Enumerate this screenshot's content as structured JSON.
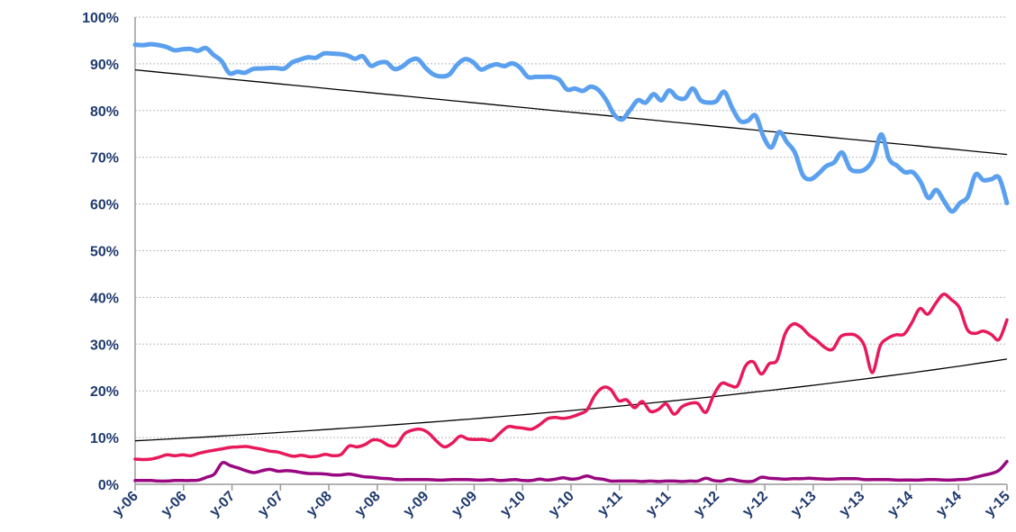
{
  "chart_data": {
    "type": "line",
    "title": "",
    "xlabel": "",
    "ylabel": "",
    "ylim": [
      0,
      100
    ],
    "y_ticks": [
      "0%",
      "10%",
      "20%",
      "30%",
      "40%",
      "50%",
      "60%",
      "70%",
      "80%",
      "90%",
      "100%"
    ],
    "x_tick_labels": [
      "y-06",
      "y-06",
      "y-07",
      "y-07",
      "y-08",
      "y-08",
      "y-09",
      "y-09",
      "y-10",
      "y-10",
      "y-11",
      "y-11",
      "y-12",
      "y-12",
      "y-13",
      "y-13",
      "y-14",
      "y-14",
      "y-15"
    ],
    "grid": true,
    "series": [
      {
        "color": "#5aa0ef",
        "values": [
          94.1,
          94.0,
          94.2,
          94.0,
          93.6,
          92.9,
          93.1,
          93.2,
          92.8,
          93.4,
          91.9,
          90.6,
          88.0,
          88.3,
          88.1,
          88.9,
          89.0,
          89.1,
          89.1,
          89.0,
          90.3,
          90.9,
          91.4,
          91.3,
          92.2,
          92.2,
          92.1,
          91.8,
          91.1,
          91.6,
          89.6,
          90.2,
          90.3,
          88.9,
          89.4,
          90.7,
          91.0,
          89.1,
          87.7,
          87.3,
          87.7,
          89.8,
          91.0,
          90.4,
          88.8,
          89.4,
          89.9,
          89.5,
          90.1,
          89.2,
          87.2,
          87.2,
          87.2,
          87.2,
          86.6,
          84.5,
          84.7,
          84.2,
          85.1,
          84.4,
          82.2,
          79.1,
          78.1,
          80.1,
          82.2,
          81.7,
          83.5,
          82.2,
          84.3,
          82.8,
          82.6,
          84.7,
          82.2,
          81.7,
          82.0,
          84.0,
          80.6,
          77.8,
          77.8,
          78.9,
          74.4,
          72.1,
          75.4,
          73.2,
          71.0,
          66.2,
          65.3,
          66.5,
          68.1,
          68.9,
          71.0,
          67.6,
          67.0,
          67.5,
          69.7,
          74.9,
          69.6,
          68.2,
          66.8,
          66.8,
          64.7,
          61.3,
          63.0,
          60.6,
          58.4,
          60.2,
          61.5,
          66.3,
          65.1,
          65.3,
          65.6,
          60.2
        ]
      },
      {
        "color": "#e8195a",
        "values": [
          5.4,
          5.3,
          5.4,
          5.8,
          6.3,
          6.1,
          6.3,
          6.1,
          6.6,
          7.0,
          7.3,
          7.6,
          7.9,
          8.0,
          8.1,
          7.8,
          7.5,
          7.1,
          6.9,
          6.4,
          6.0,
          6.2,
          5.9,
          6.0,
          6.4,
          6.1,
          6.4,
          8.2,
          8.0,
          8.5,
          9.5,
          9.3,
          8.3,
          8.4,
          10.8,
          11.6,
          11.8,
          11.0,
          9.3,
          8.0,
          8.8,
          10.3,
          9.7,
          9.6,
          9.6,
          9.4,
          10.9,
          12.3,
          12.2,
          12.0,
          11.8,
          12.7,
          14.0,
          14.3,
          14.1,
          14.4,
          15.0,
          15.9,
          19.0,
          20.7,
          20.3,
          17.9,
          18.1,
          16.4,
          17.7,
          15.6,
          16.0,
          17.2,
          15.0,
          16.6,
          17.3,
          17.3,
          15.4,
          19.1,
          21.6,
          21.2,
          21.1,
          25.3,
          26.2,
          23.6,
          25.8,
          26.6,
          32.2,
          34.3,
          33.7,
          32.0,
          30.8,
          29.3,
          28.9,
          31.6,
          32.1,
          31.8,
          29.7,
          23.9,
          29.6,
          31.3,
          32.0,
          32.1,
          34.6,
          37.6,
          36.4,
          38.7,
          40.7,
          39.5,
          37.8,
          33.1,
          32.3,
          32.8,
          32.1,
          31.0,
          35.2
        ]
      },
      {
        "color": "#990880",
        "values": [
          0.8,
          0.8,
          0.8,
          0.7,
          0.7,
          0.8,
          0.8,
          0.8,
          0.9,
          1.5,
          2.2,
          4.6,
          4.0,
          3.5,
          2.9,
          2.5,
          2.9,
          3.2,
          2.8,
          2.9,
          2.8,
          2.5,
          2.3,
          2.3,
          2.2,
          2.0,
          2.0,
          2.2,
          1.9,
          1.6,
          1.5,
          1.3,
          1.2,
          1.0,
          1.0,
          1.0,
          1.0,
          1.0,
          0.9,
          0.9,
          1.0,
          1.0,
          1.0,
          0.9,
          0.9,
          1.0,
          0.8,
          0.9,
          1.0,
          0.8,
          0.8,
          1.1,
          0.9,
          1.1,
          1.4,
          1.1,
          1.3,
          1.8,
          1.3,
          1.1,
          0.7,
          0.7,
          0.7,
          0.7,
          0.6,
          0.7,
          0.6,
          0.7,
          0.7,
          0.6,
          0.7,
          0.7,
          1.3,
          0.8,
          0.7,
          1.1,
          0.8,
          0.6,
          0.7,
          1.5,
          1.3,
          1.2,
          1.1,
          1.2,
          1.2,
          1.3,
          1.2,
          1.1,
          1.1,
          1.2,
          1.2,
          1.2,
          1.0,
          1.0,
          1.0,
          1.0,
          0.9,
          0.9,
          0.9,
          0.9,
          1.0,
          1.0,
          0.9,
          0.9,
          1.0,
          1.1,
          1.5,
          1.9,
          2.3,
          3.0,
          4.9
        ]
      }
    ],
    "trendlines": [
      {
        "color": "#000000",
        "type": "linear",
        "start": 88.7,
        "end": 70.6
      },
      {
        "color": "#000000",
        "type": "exponential",
        "start": 9.3,
        "end": 26.8
      }
    ]
  }
}
